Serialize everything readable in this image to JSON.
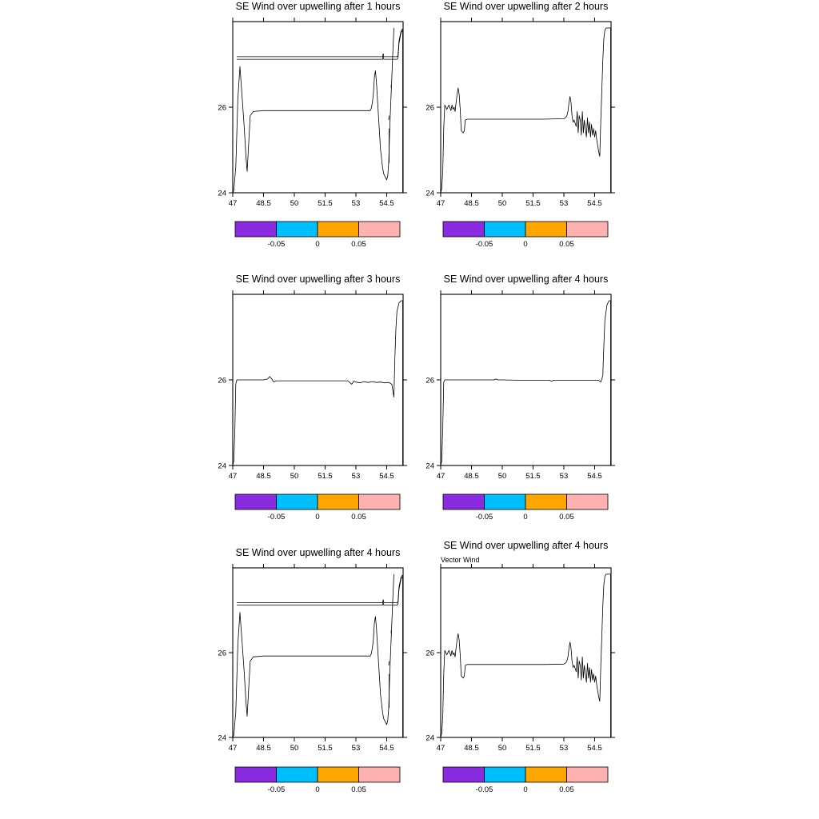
{
  "chart_data": [
    {
      "type": "line",
      "title": "SE Wind over upwelling after  1 hours",
      "subtitle": "",
      "xlim": [
        47,
        55.3
      ],
      "ylim": [
        24,
        28
      ],
      "x_ticks": [
        "47",
        "48.5",
        "50",
        "51.5",
        "53",
        "54.5"
      ],
      "y_ticks": [
        "24",
        "26"
      ],
      "series": [
        {
          "x": [
            47.0,
            47.05,
            47.15,
            47.25,
            47.35,
            47.45,
            47.55,
            47.65,
            47.7,
            47.75,
            47.85,
            48.0,
            48.5,
            50.0,
            52.0,
            53.7,
            53.75,
            53.8,
            53.85,
            53.9,
            53.95,
            54.0,
            54.05,
            54.1,
            54.15,
            54.2,
            54.25,
            54.3,
            54.35,
            54.4,
            54.45,
            54.5,
            54.55,
            54.6,
            54.65,
            54.7,
            54.75,
            54.8,
            54.85
          ],
          "y": [
            24.0,
            24.05,
            24.6,
            26.2,
            26.95,
            26.3,
            25.6,
            24.8,
            24.5,
            24.9,
            25.8,
            25.9,
            25.92,
            25.92,
            25.92,
            25.92,
            25.97,
            26.1,
            26.3,
            26.7,
            26.85,
            26.6,
            26.2,
            25.8,
            25.4,
            25.0,
            24.8,
            24.6,
            24.45,
            24.4,
            24.35,
            24.3,
            24.4,
            24.7,
            25.5,
            26.1,
            26.7,
            27.3,
            27.85
          ]
        },
        {
          "x": [
            47.2,
            50.0,
            53.0,
            54.3,
            54.33,
            54.36,
            54.4,
            55.0,
            55.05,
            55.1,
            55.2,
            55.25,
            55.28,
            55.28
          ],
          "y": [
            27.18,
            27.18,
            27.18,
            27.18,
            27.25,
            27.18,
            27.18,
            27.18,
            27.2,
            27.55,
            27.78,
            27.82,
            27.82,
            24.0
          ]
        },
        {
          "x": [
            47.2,
            50.0,
            53.0,
            54.3,
            54.33,
            54.36,
            54.4,
            55.0,
            55.05,
            55.1,
            55.2,
            55.25,
            55.28
          ],
          "y": [
            27.12,
            27.12,
            27.12,
            27.12,
            27.18,
            27.12,
            27.12,
            27.12,
            27.14,
            27.5,
            27.74,
            27.78,
            27.78
          ]
        },
        {
          "x": [
            54.62,
            54.62
          ],
          "y": [
            24.7,
            25.5
          ]
        },
        {
          "x": [
            54.6,
            54.62
          ],
          "y": [
            25.7,
            25.8
          ]
        },
        {
          "x": [
            54.72,
            54.72
          ],
          "y": [
            26.45,
            26.52
          ]
        }
      ]
    },
    {
      "type": "line",
      "title": "SE Wind over upwelling after  2 hours",
      "subtitle": "",
      "xlim": [
        47,
        55.3
      ],
      "ylim": [
        24,
        28
      ],
      "x_ticks": [
        "47",
        "48.5",
        "50",
        "51.5",
        "53",
        "54.5"
      ],
      "y_ticks": [
        "24",
        "26"
      ],
      "series": [
        {
          "x": [
            47.0,
            47.05,
            47.1,
            47.15,
            47.2,
            47.25,
            47.3,
            47.4,
            47.5,
            47.55,
            47.6,
            47.65,
            47.7,
            47.75,
            47.8,
            47.85,
            47.9,
            47.95,
            48.0,
            48.1,
            48.15,
            48.2,
            48.3,
            48.35,
            48.4,
            48.5,
            49.0,
            50.0,
            51.0,
            52.0,
            53.0,
            53.1,
            53.15,
            53.2,
            53.25,
            53.3,
            53.35,
            53.4,
            53.45,
            53.5,
            53.6,
            53.65,
            53.7,
            53.75,
            53.8,
            53.85,
            53.9,
            53.95,
            54.0,
            54.05,
            54.1,
            54.15,
            54.2,
            54.25,
            54.3,
            54.35,
            54.4,
            54.45,
            54.5,
            54.55,
            54.6,
            54.65,
            54.7,
            54.75,
            54.8,
            54.85,
            54.9,
            54.95,
            55.0,
            55.05,
            55.1,
            55.15,
            55.2,
            55.25,
            55.28,
            55.28
          ],
          "y": [
            24.0,
            24.1,
            24.5,
            25.5,
            26.05,
            26.0,
            25.95,
            26.05,
            25.92,
            26.05,
            25.95,
            26.0,
            25.9,
            26.1,
            26.3,
            26.45,
            26.3,
            25.95,
            25.45,
            25.4,
            25.45,
            25.7,
            25.72,
            25.72,
            25.72,
            25.72,
            25.72,
            25.72,
            25.72,
            25.72,
            25.73,
            25.76,
            25.8,
            25.9,
            26.1,
            26.25,
            26.1,
            25.8,
            25.65,
            25.7,
            25.55,
            25.9,
            25.4,
            25.8,
            25.7,
            25.35,
            25.9,
            25.4,
            25.7,
            25.5,
            25.3,
            25.75,
            25.4,
            25.65,
            25.3,
            25.6,
            25.35,
            25.5,
            25.3,
            25.45,
            25.25,
            25.1,
            24.95,
            24.85,
            25.7,
            26.4,
            27.1,
            27.6,
            27.8,
            27.85,
            27.85,
            27.85,
            27.85,
            27.85,
            27.85,
            24.0
          ]
        }
      ]
    },
    {
      "type": "line",
      "title": "SE Wind over upwelling after  3 hours",
      "subtitle": "",
      "xlim": [
        47,
        55.3
      ],
      "ylim": [
        24,
        28
      ],
      "x_ticks": [
        "47",
        "48.5",
        "50",
        "51.5",
        "53",
        "54.5"
      ],
      "y_ticks": [
        "24",
        "26"
      ],
      "series": [
        {
          "x": [
            47.0,
            47.05,
            47.1,
            47.15,
            47.2,
            47.25,
            47.3,
            47.5,
            48.0,
            48.5,
            48.7,
            48.8,
            48.9,
            49.0,
            49.1,
            49.2,
            50.0,
            51.0,
            52.0,
            52.6,
            52.7,
            52.8,
            52.9,
            53.0,
            53.2,
            53.4,
            53.6,
            53.8,
            54.0,
            54.2,
            54.4,
            54.6,
            54.75,
            54.85,
            54.9,
            54.95,
            55.0,
            55.1,
            55.2,
            55.28,
            55.28
          ],
          "y": [
            24.0,
            24.1,
            24.8,
            25.9,
            26.0,
            26.0,
            26.0,
            26.0,
            26.0,
            26.0,
            26.02,
            26.08,
            26.02,
            25.95,
            25.98,
            25.98,
            25.98,
            25.98,
            25.98,
            25.98,
            25.94,
            25.9,
            25.97,
            25.95,
            25.93,
            25.96,
            25.94,
            25.96,
            25.94,
            25.95,
            25.93,
            25.94,
            25.9,
            25.6,
            26.5,
            27.2,
            27.6,
            27.8,
            27.85,
            27.85,
            24.0
          ]
        }
      ]
    },
    {
      "type": "line",
      "title": "SE Wind over upwelling after  4 hours",
      "subtitle": "",
      "xlim": [
        47,
        55.3
      ],
      "ylim": [
        24,
        28
      ],
      "x_ticks": [
        "47",
        "48.5",
        "50",
        "51.5",
        "53",
        "54.5"
      ],
      "y_ticks": [
        "24",
        "26"
      ],
      "series": [
        {
          "x": [
            47.0,
            47.05,
            47.1,
            47.15,
            47.2,
            47.25,
            47.3,
            47.5,
            48.0,
            49.0,
            49.6,
            49.7,
            49.8,
            50.0,
            51.0,
            52.0,
            52.3,
            52.4,
            52.5,
            53.0,
            53.5,
            54.0,
            54.5,
            54.7,
            54.8,
            54.9,
            54.95,
            55.0,
            55.1,
            55.2,
            55.28,
            55.28
          ],
          "y": [
            24.0,
            24.1,
            24.9,
            25.95,
            26.0,
            26.0,
            26.0,
            26.0,
            26.0,
            26.0,
            26.0,
            26.02,
            26.0,
            26.0,
            25.99,
            25.99,
            25.99,
            25.97,
            25.99,
            25.99,
            25.99,
            25.99,
            25.99,
            25.99,
            25.95,
            26.1,
            26.8,
            27.4,
            27.75,
            27.85,
            27.85,
            24.0
          ]
        }
      ]
    },
    {
      "type": "line",
      "title": "SE Wind over upwelling after  4 hours",
      "subtitle": "",
      "xlim": [
        47,
        55.3
      ],
      "ylim": [
        24,
        28
      ],
      "x_ticks": [
        "47",
        "48.5",
        "50",
        "51.5",
        "53",
        "54.5"
      ],
      "y_ticks": [
        "24",
        "26"
      ],
      "series": [
        {
          "x": [
            47.0,
            47.05,
            47.15,
            47.25,
            47.35,
            47.45,
            47.55,
            47.65,
            47.7,
            47.75,
            47.85,
            48.0,
            48.5,
            50.0,
            52.0,
            53.7,
            53.75,
            53.8,
            53.85,
            53.9,
            53.95,
            54.0,
            54.05,
            54.1,
            54.15,
            54.2,
            54.25,
            54.3,
            54.35,
            54.4,
            54.45,
            54.5,
            54.55,
            54.6,
            54.65,
            54.7,
            54.75,
            54.8,
            54.85
          ],
          "y": [
            24.0,
            24.05,
            24.6,
            26.2,
            26.95,
            26.3,
            25.6,
            24.8,
            24.5,
            24.9,
            25.8,
            25.9,
            25.92,
            25.92,
            25.92,
            25.92,
            25.97,
            26.1,
            26.3,
            26.7,
            26.85,
            26.6,
            26.2,
            25.8,
            25.4,
            25.0,
            24.8,
            24.6,
            24.45,
            24.4,
            24.35,
            24.3,
            24.4,
            24.7,
            25.5,
            26.1,
            26.7,
            27.3,
            27.85
          ]
        },
        {
          "x": [
            47.2,
            50.0,
            53.0,
            54.3,
            54.33,
            54.36,
            54.4,
            55.0,
            55.05,
            55.1,
            55.2,
            55.25,
            55.28,
            55.28
          ],
          "y": [
            27.18,
            27.18,
            27.18,
            27.18,
            27.25,
            27.18,
            27.18,
            27.18,
            27.2,
            27.55,
            27.78,
            27.82,
            27.82,
            24.0
          ]
        },
        {
          "x": [
            47.2,
            50.0,
            53.0,
            54.3,
            54.33,
            54.36,
            54.4,
            55.0,
            55.05,
            55.1,
            55.2,
            55.25,
            55.28
          ],
          "y": [
            27.12,
            27.12,
            27.12,
            27.12,
            27.18,
            27.12,
            27.12,
            27.12,
            27.14,
            27.5,
            27.74,
            27.78,
            27.78
          ]
        },
        {
          "x": [
            54.62,
            54.62
          ],
          "y": [
            24.7,
            25.5
          ]
        },
        {
          "x": [
            54.6,
            54.62
          ],
          "y": [
            25.7,
            25.8
          ]
        },
        {
          "x": [
            54.72,
            54.72
          ],
          "y": [
            26.45,
            26.52
          ]
        }
      ]
    },
    {
      "type": "line",
      "title": "SE Wind over upwelling after  4 hours",
      "subtitle": "Vector Wind",
      "xlim": [
        47,
        55.3
      ],
      "ylim": [
        24,
        28
      ],
      "x_ticks": [
        "47",
        "48.5",
        "50",
        "51.5",
        "53",
        "54.5"
      ],
      "y_ticks": [
        "24",
        "26"
      ],
      "series": [
        {
          "x": [
            47.0,
            47.05,
            47.1,
            47.15,
            47.2,
            47.25,
            47.3,
            47.4,
            47.5,
            47.55,
            47.6,
            47.65,
            47.7,
            47.75,
            47.8,
            47.85,
            47.9,
            47.95,
            48.0,
            48.1,
            48.15,
            48.2,
            48.3,
            48.35,
            48.4,
            48.5,
            49.0,
            50.0,
            51.0,
            52.0,
            53.0,
            53.1,
            53.15,
            53.2,
            53.25,
            53.3,
            53.35,
            53.4,
            53.45,
            53.5,
            53.6,
            53.65,
            53.7,
            53.75,
            53.8,
            53.85,
            53.9,
            53.95,
            54.0,
            54.05,
            54.1,
            54.15,
            54.2,
            54.25,
            54.3,
            54.35,
            54.4,
            54.45,
            54.5,
            54.55,
            54.6,
            54.65,
            54.7,
            54.75,
            54.8,
            54.85,
            54.9,
            54.95,
            55.0,
            55.05,
            55.1,
            55.15,
            55.2,
            55.25,
            55.28,
            55.28
          ],
          "y": [
            24.0,
            24.1,
            24.5,
            25.5,
            26.05,
            26.0,
            25.95,
            26.05,
            25.92,
            26.05,
            25.95,
            26.0,
            25.9,
            26.1,
            26.3,
            26.45,
            26.3,
            25.95,
            25.45,
            25.4,
            25.45,
            25.7,
            25.72,
            25.72,
            25.72,
            25.72,
            25.72,
            25.72,
            25.72,
            25.72,
            25.73,
            25.76,
            25.8,
            25.9,
            26.1,
            26.25,
            26.1,
            25.8,
            25.65,
            25.7,
            25.55,
            25.9,
            25.4,
            25.8,
            25.7,
            25.35,
            25.9,
            25.4,
            25.7,
            25.5,
            25.3,
            25.75,
            25.4,
            25.65,
            25.3,
            25.6,
            25.35,
            25.5,
            25.3,
            25.45,
            25.25,
            25.1,
            24.95,
            24.85,
            25.7,
            26.4,
            27.1,
            27.6,
            27.8,
            27.85,
            27.85,
            27.85,
            27.85,
            27.85,
            27.85,
            24.0
          ]
        }
      ]
    }
  ],
  "colorbar": {
    "colors": [
      "#8A2BE2",
      "#00BFFF",
      "#FFA500",
      "#FFB0B0"
    ],
    "labels": [
      "-0.05",
      "0",
      "0.05"
    ]
  }
}
